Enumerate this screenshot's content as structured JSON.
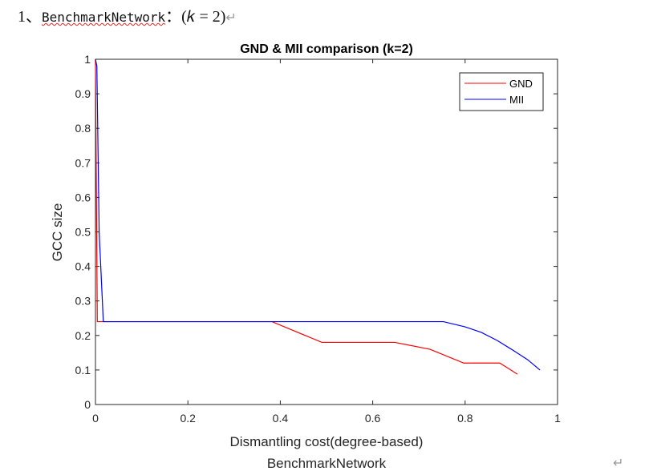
{
  "heading": {
    "number": "1、",
    "network": "BenchmarkNetwork",
    "colon": "：",
    "formula": "(𝑘 = 2)",
    "return_mark": "↵"
  },
  "footer_return_mark": "↵",
  "chart_data": {
    "type": "line",
    "title": "GND & MII comparison (k=2)",
    "xlabel": "Dismantling cost(degree-based)",
    "ylabel": "GCC size",
    "caption": "BenchmarkNetwork",
    "xlim": [
      0,
      1
    ],
    "ylim": [
      0,
      1
    ],
    "xticks": [
      "0",
      "0.2",
      "0.4",
      "0.6",
      "0.8",
      "1"
    ],
    "yticks": [
      "0",
      "0.1",
      "0.2",
      "0.3",
      "0.4",
      "0.5",
      "0.6",
      "0.7",
      "0.8",
      "0.9",
      "1"
    ],
    "grid": false,
    "legend": "top-right",
    "series": [
      {
        "name": "GND",
        "color": "#ff0000",
        "x": [
          0,
          0.004,
          0.382,
          0.49,
          0.648,
          0.724,
          0.797,
          0.875,
          0.913
        ],
        "y": [
          1,
          0.24,
          0.24,
          0.18,
          0.18,
          0.16,
          0.12,
          0.12,
          0.088
        ]
      },
      {
        "name": "MII",
        "color": "#0000ff",
        "x": [
          0,
          0.003,
          0.008,
          0.017,
          0.753,
          0.8,
          0.835,
          0.87,
          0.905,
          0.935,
          0.962
        ],
        "y": [
          1,
          0.98,
          0.5,
          0.24,
          0.24,
          0.225,
          0.209,
          0.185,
          0.156,
          0.13,
          0.1
        ]
      }
    ]
  }
}
